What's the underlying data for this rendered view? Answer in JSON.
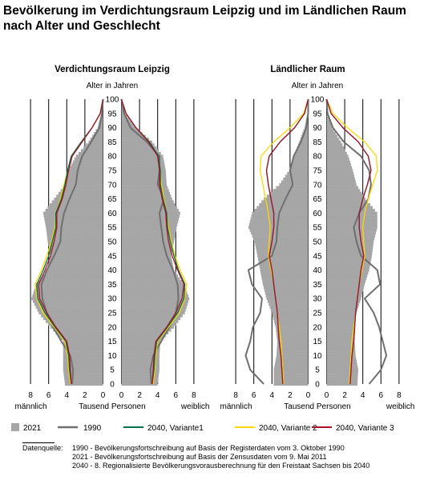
{
  "header": {
    "title_line1": "Bevölkerung im Verdichtungsraum Leipzig und im Ländlichen Raum",
    "title_line2": "nach Alter und Geschlecht"
  },
  "chart_data": {
    "type": "population-pyramid",
    "y_axis": {
      "label": "Alter in Jahren",
      "range": [
        0,
        100
      ],
      "ticks": [
        "0",
        "5",
        "10",
        "15",
        "20",
        "25",
        "30",
        "35",
        "40",
        "45",
        "50",
        "55",
        "60",
        "65",
        "70",
        "75",
        "80",
        "85",
        "90",
        "95",
        "100"
      ]
    },
    "x_axis": {
      "label": "Tausend Personen",
      "left_label": "männlich",
      "right_label": "weiblich",
      "range": [
        0,
        8
      ],
      "ticks": [
        "8",
        "6",
        "4",
        "2",
        "0"
      ],
      "ticks_right": [
        "0",
        "2",
        "4",
        "6",
        "8"
      ]
    },
    "grid": true,
    "legend_position": "bottom",
    "series": [
      {
        "name": "2021",
        "color": "#a6a6a6",
        "style": "bars"
      },
      {
        "name": "1990",
        "color": "#6f6f6f",
        "style": "line"
      },
      {
        "name": "2040, Variante1",
        "color": "#00704a",
        "style": "line"
      },
      {
        "name": "2040, Variante 2",
        "color": "#ffd700",
        "style": "line"
      },
      {
        "name": "2040, Variante 3",
        "color": "#a6122d",
        "style": "line"
      }
    ],
    "panels": [
      {
        "title": "Verdichtungsraum Leipzig",
        "ages": [
          0,
          5,
          10,
          15,
          20,
          25,
          30,
          35,
          40,
          45,
          50,
          55,
          60,
          65,
          70,
          75,
          80,
          85,
          90,
          95,
          100
        ],
        "male": {
          "2021": [
            4.2,
            4.4,
            4.4,
            4.4,
            5.8,
            7.1,
            7.9,
            7.4,
            6.2,
            5.8,
            6.1,
            6.3,
            6.6,
            5.4,
            4.2,
            3.8,
            3.0,
            1.6,
            0.6,
            0.2,
            0
          ],
          "1990": [
            3.4,
            3.3,
            3.6,
            4.6,
            5.5,
            6.2,
            6.7,
            6.8,
            6.2,
            5.4,
            4.7,
            4.6,
            4.3,
            3.7,
            3.0,
            2.8,
            2.3,
            1.3,
            0.4,
            0.1,
            0
          ],
          "2040, Variante1": [
            3.5,
            3.7,
            3.8,
            4.1,
            5.3,
            6.4,
            7.2,
            7.3,
            6.6,
            6.0,
            5.6,
            5.2,
            5.2,
            4.6,
            4.2,
            3.9,
            3.5,
            2.4,
            1.2,
            0.3,
            0
          ],
          "2040, Variante 2": [
            3.6,
            3.8,
            3.9,
            4.2,
            5.4,
            6.6,
            7.3,
            7.5,
            6.8,
            6.2,
            5.7,
            5.3,
            5.2,
            4.7,
            4.3,
            3.9,
            3.5,
            2.4,
            1.2,
            0.3,
            0
          ],
          "2040, Variante 3": [
            3.5,
            3.6,
            3.7,
            4.0,
            5.2,
            6.2,
            7.0,
            7.1,
            6.4,
            5.8,
            5.4,
            5.1,
            5.1,
            4.5,
            4.1,
            3.8,
            3.4,
            2.3,
            1.2,
            0.3,
            0
          ]
        },
        "female": {
          "2021": [
            4.0,
            4.2,
            4.2,
            4.3,
            5.8,
            7.0,
            7.5,
            6.9,
            5.8,
            5.5,
            5.8,
            6.1,
            6.5,
            5.6,
            5.0,
            4.9,
            4.6,
            3.4,
            1.6,
            0.4,
            0
          ],
          "1990": [
            3.3,
            3.2,
            3.5,
            4.4,
            5.3,
            6.0,
            6.3,
            6.2,
            5.7,
            5.0,
            4.6,
            4.4,
            4.2,
            4.7,
            4.0,
            4.2,
            4.2,
            2.8,
            1.0,
            0.3,
            0
          ],
          "2040, Variante1": [
            3.4,
            3.6,
            3.7,
            3.9,
            5.1,
            6.2,
            6.9,
            7.0,
            6.3,
            5.8,
            5.4,
            5.1,
            5.0,
            4.6,
            4.3,
            4.3,
            4.1,
            3.1,
            1.6,
            0.5,
            0
          ],
          "2040, Variante 2": [
            3.5,
            3.7,
            3.8,
            4.0,
            5.2,
            6.4,
            7.0,
            7.2,
            6.5,
            5.9,
            5.5,
            5.2,
            5.0,
            4.7,
            4.4,
            4.3,
            4.1,
            3.1,
            1.6,
            0.5,
            0
          ],
          "2040, Variante 3": [
            3.4,
            3.5,
            3.6,
            3.8,
            5.0,
            6.0,
            6.7,
            6.9,
            6.2,
            5.6,
            5.2,
            5.0,
            4.9,
            4.5,
            4.2,
            4.2,
            4.0,
            3.0,
            1.6,
            0.5,
            0
          ]
        }
      },
      {
        "title": "Ländlicher Raum",
        "ages": [
          0,
          5,
          10,
          15,
          20,
          25,
          30,
          35,
          40,
          45,
          50,
          55,
          60,
          65,
          70,
          75,
          80,
          85,
          90,
          95,
          100
        ],
        "male": {
          "2021": [
            3.8,
            3.8,
            3.5,
            3.4,
            3.6,
            4.0,
            4.6,
            5.0,
            5.3,
            5.6,
            5.9,
            6.6,
            6.2,
            4.9,
            3.2,
            2.1,
            1.6,
            1.0,
            0.4,
            0.1,
            0
          ],
          "1990": [
            4.9,
            6.4,
            6.9,
            6.4,
            6.1,
            5.3,
            5.1,
            6.2,
            6.6,
            4.0,
            3.5,
            3.4,
            3.2,
            2.5,
            1.7,
            2.0,
            1.6,
            0.8,
            0.2,
            0,
            0
          ],
          "2040, Variante1": [
            2.8,
            2.9,
            3.0,
            3.2,
            3.3,
            3.4,
            3.6,
            3.8,
            4.0,
            4.3,
            4.0,
            3.8,
            3.8,
            4.1,
            4.4,
            4.6,
            4.3,
            3.1,
            1.5,
            0.4,
            0
          ],
          "2040, Variante 2": [
            2.7,
            2.8,
            2.9,
            3.0,
            3.2,
            3.4,
            3.6,
            3.8,
            4.1,
            4.4,
            4.3,
            4.2,
            4.4,
            4.7,
            5.0,
            5.3,
            5.2,
            3.8,
            2.0,
            0.5,
            0
          ],
          "2040, Variante 3": [
            2.8,
            2.9,
            3.0,
            3.2,
            3.3,
            3.4,
            3.6,
            3.8,
            4.0,
            4.3,
            4.0,
            3.8,
            3.8,
            4.1,
            4.4,
            4.6,
            4.3,
            3.1,
            1.5,
            0.4,
            0
          ]
        },
        "female": {
          "2021": [
            3.4,
            3.5,
            3.2,
            3.1,
            3.0,
            3.3,
            3.8,
            4.2,
            4.7,
            5.0,
            5.2,
            5.6,
            5.6,
            4.3,
            3.3,
            2.9,
            2.4,
            1.6,
            0.6,
            0.2,
            0
          ],
          "1990": [
            4.7,
            6.0,
            6.6,
            6.2,
            5.8,
            5.2,
            4.2,
            5.9,
            5.6,
            3.8,
            3.3,
            3.0,
            3.6,
            4.6,
            4.9,
            4.7,
            3.8,
            1.9,
            0.7,
            0.1,
            0
          ],
          "2040, Variante1": [
            2.6,
            2.7,
            2.8,
            3.0,
            3.1,
            3.2,
            3.4,
            3.6,
            3.8,
            4.1,
            3.8,
            3.6,
            3.6,
            4.0,
            4.5,
            4.9,
            4.6,
            3.5,
            1.8,
            0.5,
            0
          ],
          "2040, Variante 2": [
            2.5,
            2.6,
            2.7,
            2.8,
            3.0,
            3.2,
            3.4,
            3.6,
            3.9,
            4.2,
            4.1,
            4.0,
            4.2,
            4.6,
            5.1,
            5.6,
            5.5,
            4.2,
            2.3,
            0.7,
            0
          ],
          "2040, Variante 3": [
            2.6,
            2.7,
            2.8,
            3.0,
            3.1,
            3.2,
            3.4,
            3.6,
            3.8,
            4.1,
            3.8,
            3.6,
            3.6,
            4.0,
            4.5,
            4.9,
            4.6,
            3.5,
            1.8,
            0.5,
            0
          ]
        }
      }
    ]
  },
  "footnote": {
    "prefix": "Datenquelle:",
    "line1": "1990 - Bevölkerungsfortschreibung auf Basis der Registerdaten vom 3. Oktober 1990",
    "line2": "2021 - Bevölkerungsfortschreibung auf Basis der Zensusdaten vom 9. Mai 2011",
    "line3": "2040 - 8. Regionalisierte Bevölkerungsvorausberechnung für den Freistaat Sachsen bis 2040"
  }
}
